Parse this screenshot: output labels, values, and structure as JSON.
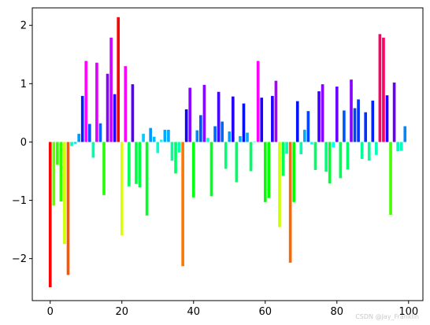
{
  "watermark": "CSDN @Jay_Franklin",
  "chart_data": {
    "type": "bar",
    "title": "",
    "xlabel": "",
    "ylabel": "",
    "xlim": [
      -5,
      104
    ],
    "ylim": [
      -2.72,
      2.3
    ],
    "grid": false,
    "legend": "none",
    "xticks": [
      0,
      20,
      40,
      60,
      80,
      100
    ],
    "yticks": [
      -2,
      -1,
      0,
      1,
      2
    ],
    "x": [
      0,
      1,
      2,
      3,
      4,
      5,
      6,
      7,
      8,
      9,
      10,
      11,
      12,
      13,
      14,
      15,
      16,
      17,
      18,
      19,
      20,
      21,
      22,
      23,
      24,
      25,
      26,
      27,
      28,
      29,
      30,
      31,
      32,
      33,
      34,
      35,
      36,
      37,
      38,
      39,
      40,
      41,
      42,
      43,
      44,
      45,
      46,
      47,
      48,
      49,
      50,
      51,
      52,
      53,
      54,
      55,
      56,
      57,
      58,
      59,
      60,
      61,
      62,
      63,
      64,
      65,
      66,
      67,
      68,
      69,
      70,
      71,
      72,
      73,
      74,
      75,
      76,
      77,
      78,
      79,
      80,
      81,
      82,
      83,
      84,
      85,
      86,
      87,
      88,
      89,
      90,
      91,
      92,
      93,
      94,
      95,
      96,
      97,
      98,
      99
    ],
    "values": [
      -2.49,
      -1.09,
      -0.39,
      -1.02,
      -1.75,
      -2.28,
      -0.07,
      -0.03,
      0.14,
      0.79,
      1.39,
      0.31,
      -0.27,
      1.36,
      0.32,
      -0.91,
      1.17,
      1.79,
      0.82,
      2.14,
      -1.6,
      1.3,
      -0.76,
      0.99,
      -0.72,
      -0.78,
      0.14,
      -1.26,
      0.24,
      0.09,
      -0.19,
      0.04,
      0.21,
      0.21,
      -0.32,
      -0.54,
      -0.18,
      -2.13,
      0.56,
      0.93,
      -0.95,
      0.2,
      0.46,
      0.98,
      0.07,
      -0.93,
      0.27,
      0.86,
      0.35,
      -0.46,
      0.18,
      0.78,
      -0.69,
      0.1,
      0.66,
      0.16,
      -0.5,
      0.01,
      1.39,
      0.76,
      -1.03,
      -0.96,
      0.79,
      1.05,
      -1.46,
      -0.58,
      -0.2,
      -2.07,
      -1.03,
      0.7,
      -0.21,
      0.21,
      0.53,
      -0.04,
      -0.48,
      0.87,
      0.99,
      -0.51,
      -0.71,
      -0.09,
      0.95,
      -0.62,
      0.54,
      -0.47,
      1.07,
      0.58,
      0.73,
      -0.29,
      0.51,
      -0.32,
      0.71,
      -0.22,
      1.85,
      1.79,
      0.8,
      -1.25,
      1.02,
      -0.16,
      -0.15,
      0.27
    ],
    "colors": [
      "#ff0000",
      "#66ff00",
      "#33ff00",
      "#33ff00",
      "#ccff00",
      "#ff5500",
      "#00ffbb",
      "#00d5ff",
      "#0099ff",
      "#0022ff",
      "#ff00ff",
      "#0055ff",
      "#00ffaa",
      "#dd00ff",
      "#0066ff",
      "#22ff00",
      "#8800ff",
      "#cc00ff",
      "#2200ff",
      "#ff0000",
      "#ddff00",
      "#ff00ff",
      "#00ff55",
      "#5500ff",
      "#00ff44",
      "#00ff44",
      "#00ccff",
      "#00ff22",
      "#0099ff",
      "#00bbff",
      "#00ffcc",
      "#00ffee",
      "#00aaff",
      "#00aaff",
      "#00ff99",
      "#00ff66",
      "#00ffbb",
      "#ff7700",
      "#1100ff",
      "#8800ff",
      "#00ff11",
      "#0088ff",
      "#0055ff",
      "#8800ff",
      "#00ffcc",
      "#00ff22",
      "#0066ff",
      "#4400ff",
      "#0066ff",
      "#00ff77",
      "#0099ff",
      "#2200ff",
      "#00ff66",
      "#00aaff",
      "#0011ff",
      "#00aaff",
      "#00ff66",
      "#00ffdd",
      "#ff00ff",
      "#2200ff",
      "#00ff00",
      "#00ff00",
      "#2200ff",
      "#aa00ff",
      "#ccff00",
      "#00ff55",
      "#00ffaa",
      "#ff6600",
      "#00ff00",
      "#0011ff",
      "#00ffaa",
      "#00aaff",
      "#0044ff",
      "#00ffee",
      "#00ff66",
      "#4400ff",
      "#8800ff",
      "#00ff77",
      "#00ff33",
      "#00ffee",
      "#6600ff",
      "#00ff55",
      "#0055ff",
      "#00ff66",
      "#8800ff",
      "#0044ff",
      "#0033ff",
      "#00ff99",
      "#0033ff",
      "#00ff99",
      "#0022ff",
      "#00ffbb",
      "#ff0066",
      "#ff0066",
      "#2200ff",
      "#44ff00",
      "#6600ff",
      "#00ffbb",
      "#00ffbb",
      "#0088ff"
    ]
  }
}
